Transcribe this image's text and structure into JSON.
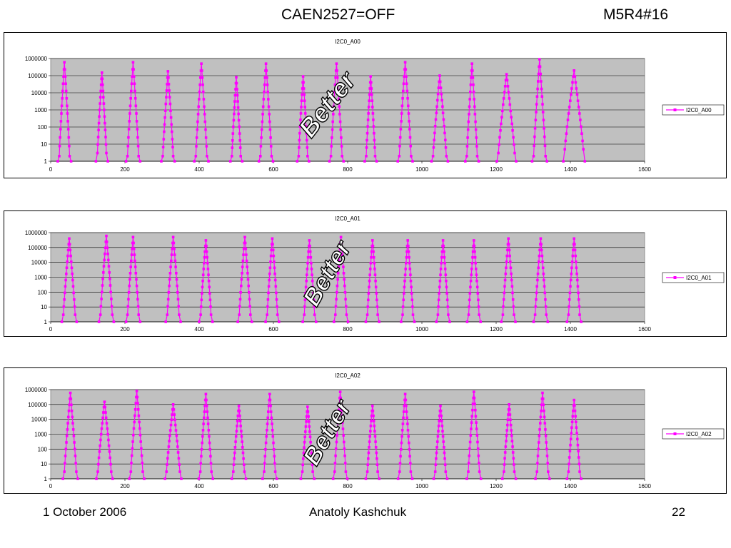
{
  "header": {
    "title": "CAEN2527=OFF",
    "run_id": "M5R4#16"
  },
  "footer": {
    "date": "1 October 2006",
    "author": "Anatoly Kashchuk",
    "page_number": "22"
  },
  "annotation_text": "Better",
  "series_color": "#ff00ff",
  "plot_background": "#c0c0c0",
  "chart_data": [
    {
      "type": "scatter",
      "mode": "lines+markers",
      "title": "I2C0_A00",
      "legend": "right",
      "series": [
        {
          "name": "I2C0_A00"
        }
      ],
      "x_ticks": [
        0,
        200,
        400,
        600,
        800,
        1000,
        1200,
        1400,
        1600
      ],
      "y_ticks": [
        1,
        10,
        100,
        1000,
        10000,
        100000,
        1000000
      ],
      "xlim": [
        0,
        1600
      ],
      "ylim": [
        1,
        1000000
      ],
      "y_scale": "log",
      "grid": "horizontal",
      "peaks": [
        {
          "x": 37,
          "peak": 600000,
          "base": 2,
          "halfwidth": 14
        },
        {
          "x": 138,
          "peak": 150000,
          "base": 3,
          "halfwidth": 12
        },
        {
          "x": 222,
          "peak": 600000,
          "base": 2,
          "halfwidth": 15
        },
        {
          "x": 316,
          "peak": 180000,
          "base": 2,
          "halfwidth": 14
        },
        {
          "x": 406,
          "peak": 500000,
          "base": 2,
          "halfwidth": 15
        },
        {
          "x": 500,
          "peak": 80000,
          "base": 2,
          "halfwidth": 12
        },
        {
          "x": 580,
          "peak": 500000,
          "base": 2,
          "halfwidth": 15
        },
        {
          "x": 680,
          "peak": 90000,
          "base": 2,
          "halfwidth": 12
        },
        {
          "x": 770,
          "peak": 500000,
          "base": 2,
          "halfwidth": 15
        },
        {
          "x": 862,
          "peak": 90000,
          "base": 2,
          "halfwidth": 12
        },
        {
          "x": 955,
          "peak": 600000,
          "base": 2,
          "halfwidth": 16
        },
        {
          "x": 1048,
          "peak": 100000,
          "base": 2,
          "halfwidth": 18
        },
        {
          "x": 1135,
          "peak": 500000,
          "base": 2,
          "halfwidth": 14
        },
        {
          "x": 1228,
          "peak": 120000,
          "base": 3,
          "halfwidth": 22
        },
        {
          "x": 1317,
          "peak": 900000,
          "base": 2,
          "halfwidth": 16
        },
        {
          "x": 1410,
          "peak": 200000,
          "base": 5,
          "halfwidth": 25
        }
      ]
    },
    {
      "type": "scatter",
      "mode": "lines+markers",
      "title": "I2C0_A01",
      "legend": "right",
      "series": [
        {
          "name": "I2C0_A01"
        }
      ],
      "x_ticks": [
        0,
        200,
        400,
        600,
        800,
        1000,
        1200,
        1400,
        1600
      ],
      "y_ticks": [
        1,
        10,
        100,
        1000,
        10000,
        100000,
        1000000
      ],
      "xlim": [
        0,
        1600
      ],
      "ylim": [
        1,
        1000000
      ],
      "y_scale": "log",
      "grid": "horizontal",
      "peaks": [
        {
          "x": 50,
          "peak": 400000,
          "base": 3,
          "halfwidth": 16
        },
        {
          "x": 150,
          "peak": 600000,
          "base": 3,
          "halfwidth": 16
        },
        {
          "x": 222,
          "peak": 500000,
          "base": 3,
          "halfwidth": 15
        },
        {
          "x": 330,
          "peak": 500000,
          "base": 3,
          "halfwidth": 16
        },
        {
          "x": 418,
          "peak": 300000,
          "base": 3,
          "halfwidth": 14
        },
        {
          "x": 523,
          "peak": 500000,
          "base": 3,
          "halfwidth": 15
        },
        {
          "x": 597,
          "peak": 400000,
          "base": 3,
          "halfwidth": 14
        },
        {
          "x": 697,
          "peak": 300000,
          "base": 3,
          "halfwidth": 14
        },
        {
          "x": 782,
          "peak": 500000,
          "base": 3,
          "halfwidth": 15
        },
        {
          "x": 867,
          "peak": 300000,
          "base": 3,
          "halfwidth": 14
        },
        {
          "x": 962,
          "peak": 300000,
          "base": 3,
          "halfwidth": 14
        },
        {
          "x": 1057,
          "peak": 300000,
          "base": 3,
          "halfwidth": 14
        },
        {
          "x": 1140,
          "peak": 300000,
          "base": 3,
          "halfwidth": 14
        },
        {
          "x": 1233,
          "peak": 400000,
          "base": 3,
          "halfwidth": 15
        },
        {
          "x": 1320,
          "peak": 400000,
          "base": 3,
          "halfwidth": 15
        },
        {
          "x": 1410,
          "peak": 400000,
          "base": 3,
          "halfwidth": 15
        }
      ]
    },
    {
      "type": "scatter",
      "mode": "lines+markers",
      "title": "I2C0_A02",
      "legend": "right",
      "series": [
        {
          "name": "I2C0_A02"
        }
      ],
      "x_ticks": [
        0,
        200,
        400,
        600,
        800,
        1000,
        1200,
        1400,
        1600
      ],
      "y_ticks": [
        1,
        10,
        100,
        1000,
        10000,
        100000,
        1000000
      ],
      "xlim": [
        0,
        1600
      ],
      "ylim": [
        1,
        1000000
      ],
      "y_scale": "log",
      "grid": "horizontal",
      "peaks": [
        {
          "x": 53,
          "peak": 600000,
          "base": 3,
          "halfwidth": 16
        },
        {
          "x": 145,
          "peak": 150000,
          "base": 3,
          "halfwidth": 18
        },
        {
          "x": 232,
          "peak": 800000,
          "base": 3,
          "halfwidth": 16
        },
        {
          "x": 330,
          "peak": 100000,
          "base": 3,
          "halfwidth": 18
        },
        {
          "x": 418,
          "peak": 500000,
          "base": 3,
          "halfwidth": 15
        },
        {
          "x": 507,
          "peak": 80000,
          "base": 3,
          "halfwidth": 15
        },
        {
          "x": 590,
          "peak": 500000,
          "base": 3,
          "halfwidth": 15
        },
        {
          "x": 692,
          "peak": 70000,
          "base": 3,
          "halfwidth": 14
        },
        {
          "x": 780,
          "peak": 700000,
          "base": 3,
          "halfwidth": 15
        },
        {
          "x": 867,
          "peak": 80000,
          "base": 3,
          "halfwidth": 14
        },
        {
          "x": 955,
          "peak": 500000,
          "base": 3,
          "halfwidth": 15
        },
        {
          "x": 1050,
          "peak": 80000,
          "base": 3,
          "halfwidth": 14
        },
        {
          "x": 1140,
          "peak": 700000,
          "base": 3,
          "halfwidth": 15
        },
        {
          "x": 1235,
          "peak": 100000,
          "base": 3,
          "halfwidth": 14
        },
        {
          "x": 1325,
          "peak": 600000,
          "base": 3,
          "halfwidth": 15
        },
        {
          "x": 1410,
          "peak": 200000,
          "base": 3,
          "halfwidth": 15
        }
      ]
    }
  ]
}
